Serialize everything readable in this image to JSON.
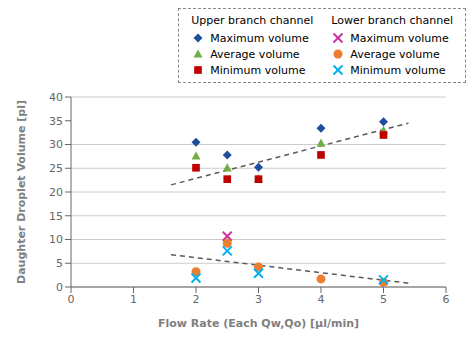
{
  "chart_data": {
    "type": "scatter",
    "xlabel": "Flow Rate (Each Qw,Qo)  [μl/min]",
    "ylabel": "Daughter Droplet Volume [pl]",
    "xlim": [
      0,
      6
    ],
    "ylim": [
      0,
      40
    ],
    "xticks": [
      0,
      1,
      2,
      3,
      4,
      5,
      6
    ],
    "yticks": [
      0,
      5,
      10,
      15,
      20,
      25,
      30,
      35,
      40
    ],
    "grid": "y",
    "legend": "top",
    "series": [
      {
        "type": "line",
        "color": "#595959",
        "line_style": "dashed",
        "x": [
          1.6,
          5.4
        ],
        "values": [
          21.5,
          34.5
        ]
      },
      {
        "type": "line",
        "color": "#595959",
        "line_style": "dashed",
        "x": [
          1.6,
          5.4
        ],
        "values": [
          6.8,
          0.8
        ]
      },
      {
        "type": "scatter",
        "name": "Maximum volume",
        "group": "Upper branch channel",
        "color": "#1f4e9c",
        "marker": "diamond",
        "x": [
          2,
          2.5,
          3,
          4,
          5
        ],
        "values": [
          30.5,
          27.8,
          25.2,
          33.4,
          34.8
        ]
      },
      {
        "type": "scatter",
        "name": "Average volume",
        "group": "Upper branch channel",
        "color": "#70ad47",
        "marker": "triangle",
        "x": [
          2,
          2.5,
          3,
          4,
          5
        ],
        "values": [
          27.6,
          25.1,
          22.8,
          30.3,
          33.0
        ]
      },
      {
        "type": "scatter",
        "name": "Minimum volume",
        "group": "Upper branch channel",
        "color": "#c00000",
        "marker": "square",
        "x": [
          2,
          2.5,
          3,
          4,
          5
        ],
        "values": [
          25.1,
          22.7,
          22.7,
          27.8,
          32.0
        ]
      },
      {
        "type": "scatter",
        "name": "Maximum volume",
        "group": "Lower branch channel",
        "color": "#cc3399",
        "marker": "x",
        "x": [
          2.5
        ],
        "values": [
          10.7
        ]
      },
      {
        "type": "scatter",
        "name": "Average volume",
        "group": "Lower branch channel",
        "color": "#ed7d31",
        "marker": "circle",
        "x": [
          2,
          2.5,
          3,
          4,
          5
        ],
        "values": [
          3.2,
          9.2,
          4.2,
          1.7,
          1.0
        ]
      },
      {
        "type": "scatter",
        "name": "Minimum volume",
        "group": "Lower branch channel",
        "color": "#00b0f0",
        "marker": "x",
        "x": [
          2,
          2.5,
          3,
          5
        ],
        "values": [
          1.9,
          7.6,
          2.9,
          1.5
        ]
      }
    ]
  }
}
